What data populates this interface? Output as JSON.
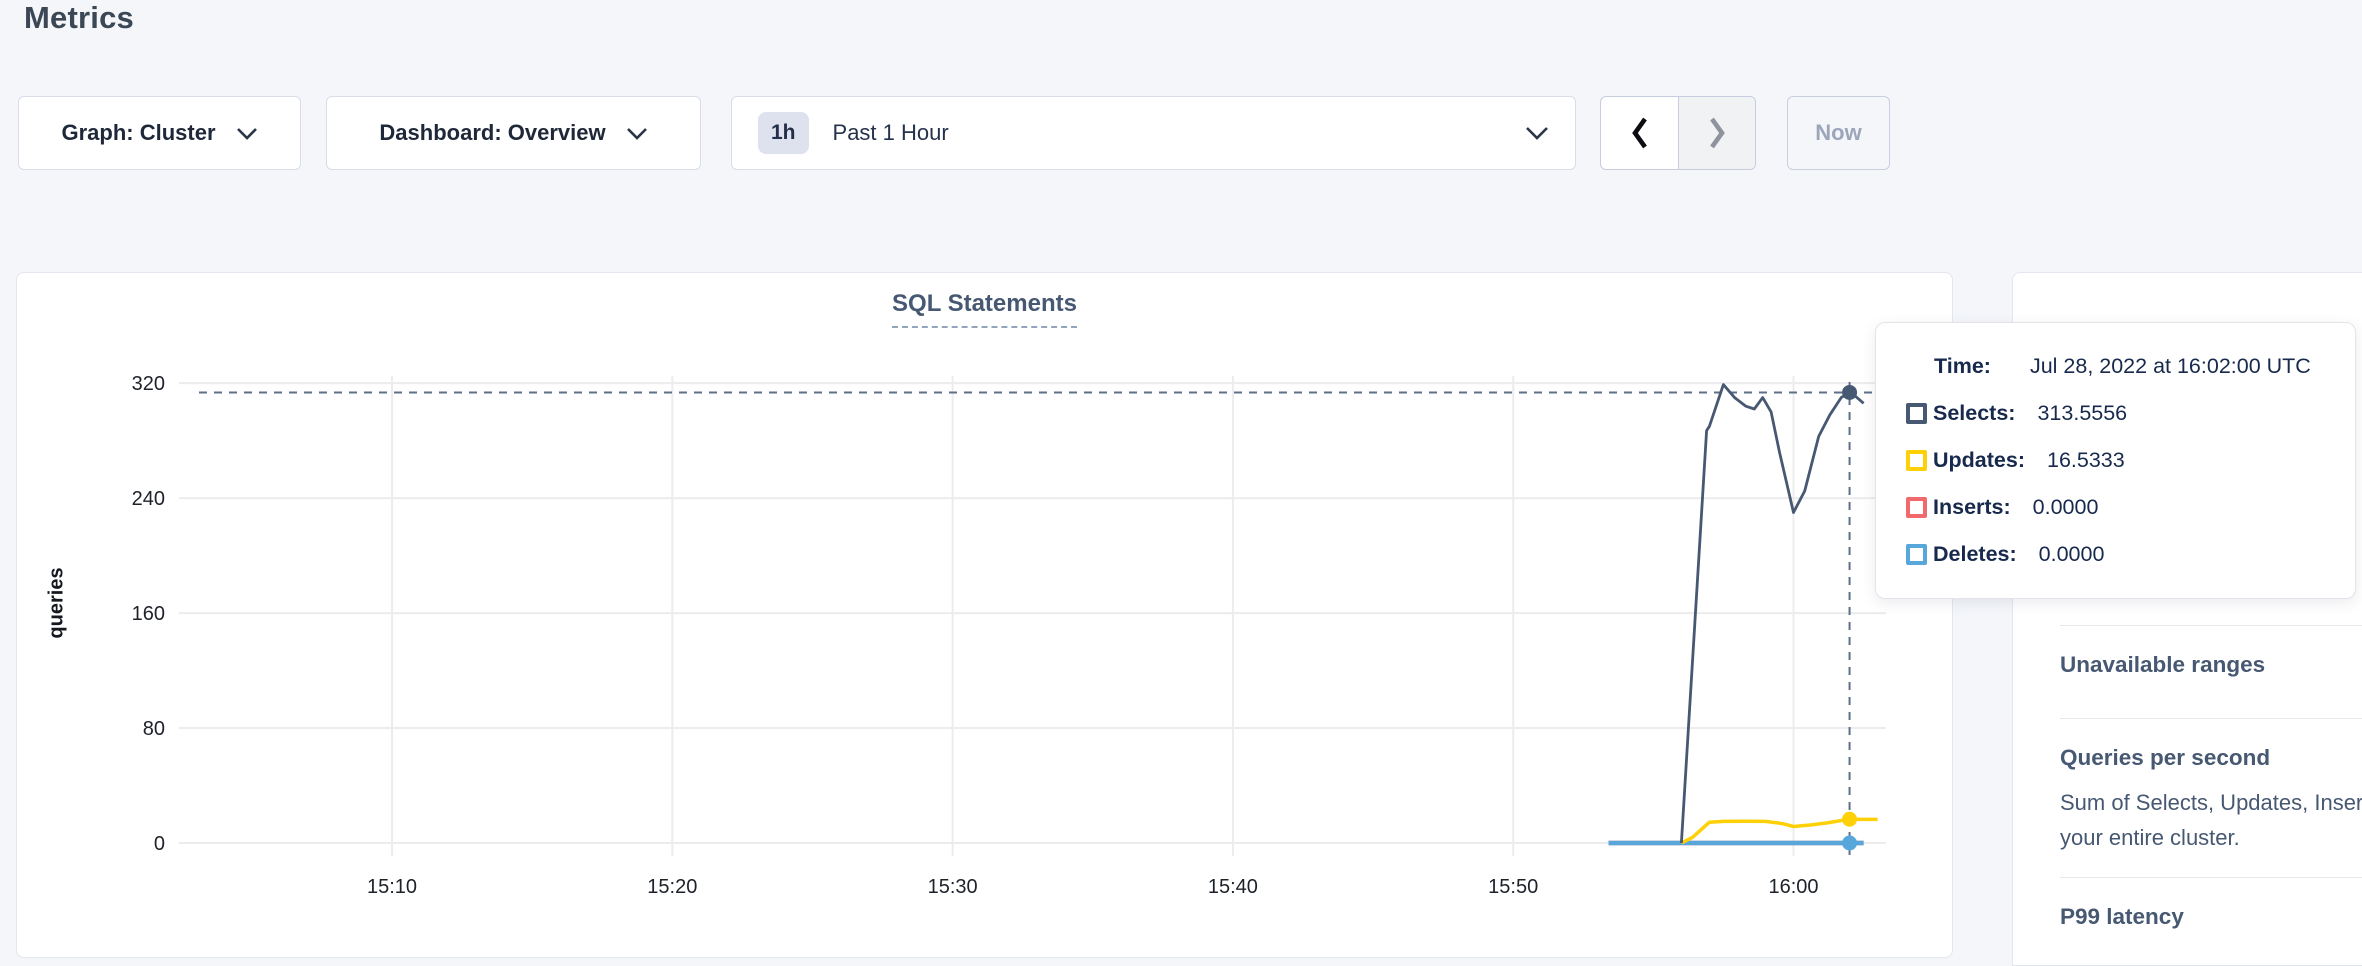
{
  "page": {
    "title": "Metrics"
  },
  "toolbar": {
    "graph_label": "Graph: Cluster",
    "dashboard_label": "Dashboard: Overview",
    "time_badge": "1h",
    "time_label": "Past 1 Hour",
    "now_label": "Now"
  },
  "chart_data": {
    "type": "line",
    "title": "SQL Statements",
    "ylabel": "queries",
    "grid": true,
    "x_axis": {
      "unit": "minutes after 15:00 UTC",
      "min": 2.4,
      "max": 63.3,
      "ticks": [
        {
          "m": 10,
          "label": "15:10"
        },
        {
          "m": 20,
          "label": "15:20"
        },
        {
          "m": 30,
          "label": "15:30"
        },
        {
          "m": 40,
          "label": "15:40"
        },
        {
          "m": 50,
          "label": "15:50"
        },
        {
          "m": 60,
          "label": "16:00"
        }
      ]
    },
    "y_axis": {
      "min": 0,
      "max": 325,
      "ticks": [
        0,
        80,
        160,
        240,
        320
      ]
    },
    "series": [
      {
        "name": "Inserts",
        "color": "#f2696c",
        "width": 4.5,
        "points": [
          [
            53.4,
            0
          ],
          [
            62.5,
            0
          ]
        ]
      },
      {
        "name": "Deletes",
        "color": "#57a7da",
        "width": 4.5,
        "points": [
          [
            53.4,
            0
          ],
          [
            62.5,
            0
          ]
        ]
      },
      {
        "name": "Updates",
        "color": "#fdd008",
        "width": 3.5,
        "points": [
          [
            56,
            0
          ],
          [
            56.4,
            4
          ],
          [
            57,
            14.5
          ],
          [
            57.5,
            15
          ],
          [
            58.3,
            15.2
          ],
          [
            59,
            15
          ],
          [
            59.6,
            13.5
          ],
          [
            60,
            11.5
          ],
          [
            60.6,
            12.5
          ],
          [
            61.2,
            14
          ],
          [
            62,
            16.5333
          ],
          [
            62.5,
            16.4
          ],
          [
            63,
            16.4
          ]
        ]
      },
      {
        "name": "Selects",
        "color": "#475872",
        "width": 2.8,
        "points": [
          [
            56,
            0
          ],
          [
            56.9,
            287
          ],
          [
            57,
            290
          ],
          [
            57.5,
            319
          ],
          [
            57.9,
            310
          ],
          [
            58.3,
            304
          ],
          [
            58.6,
            302
          ],
          [
            58.9,
            310
          ],
          [
            59.2,
            300
          ],
          [
            59.5,
            272
          ],
          [
            60,
            230
          ],
          [
            60.4,
            245
          ],
          [
            60.9,
            283
          ],
          [
            61.3,
            298
          ],
          [
            61.7,
            310
          ],
          [
            62,
            313.5556
          ],
          [
            62.2,
            311
          ],
          [
            62.5,
            306
          ]
        ]
      }
    ],
    "hover": {
      "m": 62,
      "selects_value": 313.5556,
      "dots": [
        {
          "series": "Selects",
          "value": 313.5556,
          "color": "#475872"
        },
        {
          "series": "Updates",
          "value": 16.5333,
          "color": "#fdd008"
        },
        {
          "series": "Deletes",
          "value": 0,
          "color": "#57a7da"
        }
      ]
    }
  },
  "tooltip": {
    "time_label": "Time:",
    "time_value": "Jul 28, 2022 at 16:02:00 UTC",
    "rows": [
      {
        "label": "Selects:",
        "value": "313.5556",
        "color": "#475872"
      },
      {
        "label": "Updates:",
        "value": "16.5333",
        "color": "#fdd008"
      },
      {
        "label": "Inserts:",
        "value": "0.0000",
        "color": "#f2696c"
      },
      {
        "label": "Deletes:",
        "value": "0.0000",
        "color": "#57a7da"
      }
    ]
  },
  "sidebar": {
    "sections": [
      {
        "title": "Unavailable ranges"
      },
      {
        "title": "Queries per second",
        "desc_line1": "Sum of Selects, Updates, Inser",
        "desc_line2": "your entire cluster."
      },
      {
        "title": "P99 latency"
      }
    ]
  }
}
